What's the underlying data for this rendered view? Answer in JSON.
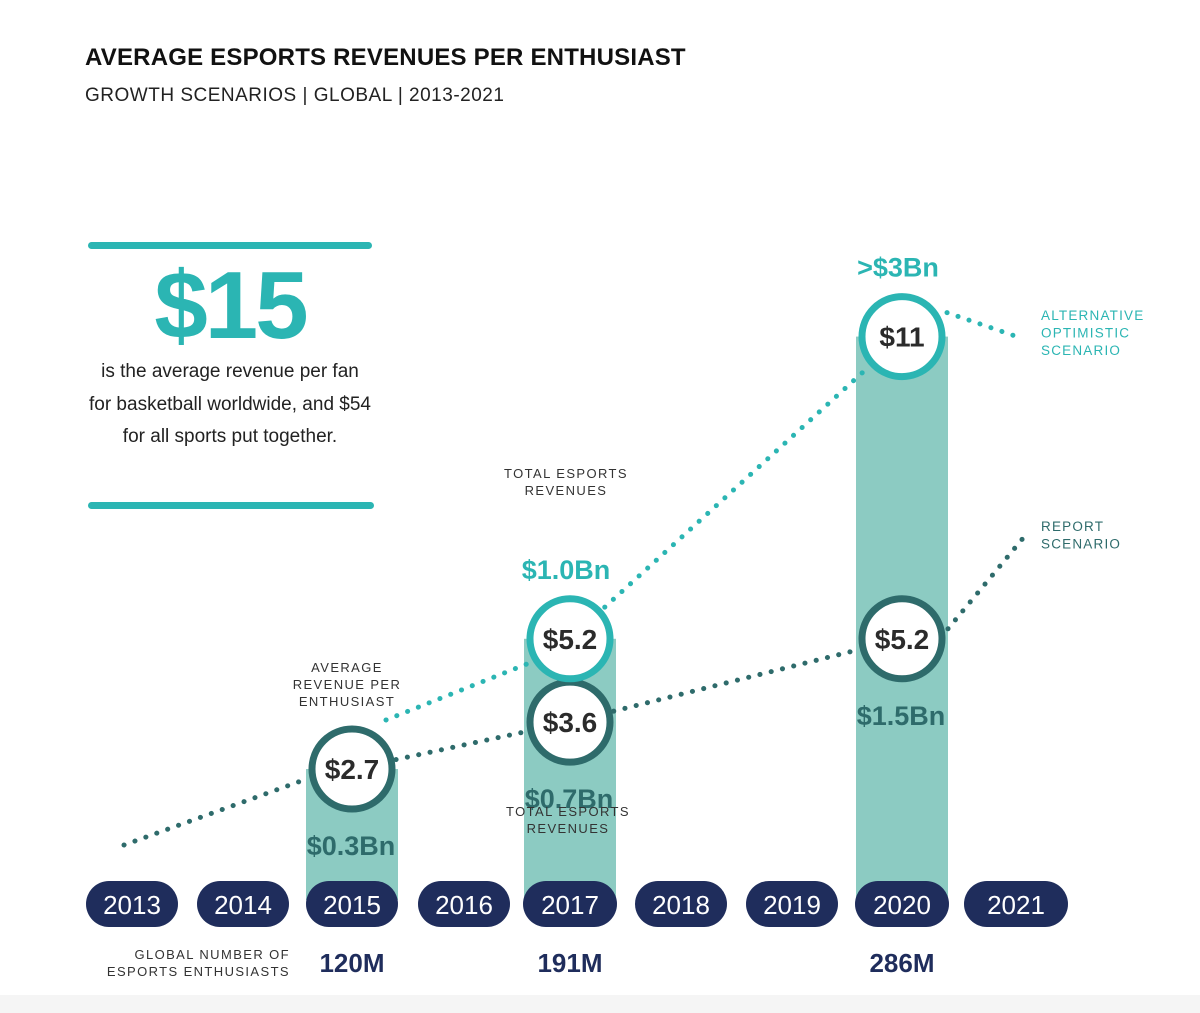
{
  "header": {
    "title": "AVERAGE ESPORTS REVENUES PER ENTHUSIAST",
    "subtitle": "GROWTH SCENARIOS | GLOBAL | 2013-2021"
  },
  "callout": {
    "value": "$15",
    "text": "is the average revenue per fan for basketball worldwide, and $54 for all sports put together."
  },
  "chart_data": {
    "type": "bar",
    "title": "AVERAGE ESPORTS REVENUES PER ENTHUSIAST",
    "subtitle": "GROWTH SCENARIOS | GLOBAL | 2013-2021",
    "categories": [
      "2013",
      "2014",
      "2015",
      "2016",
      "2017",
      "2018",
      "2019",
      "2020",
      "2021"
    ],
    "series": [
      {
        "name": "REPORT SCENARIO",
        "label": [
          "REPORT",
          "SCENARIO"
        ],
        "points": [
          {
            "year": "2015",
            "value": 2.7,
            "label": "$2.7",
            "revenue": "$0.3Bn"
          },
          {
            "year": "2017",
            "value": 3.6,
            "label": "$3.6",
            "revenue": "$0.7Bn"
          },
          {
            "year": "2020",
            "value": 5.2,
            "label": "$5.2",
            "revenue": "$1.5Bn"
          }
        ],
        "color": "#2e6b6b"
      },
      {
        "name": "ALTERNATIVE OPTIMISTIC SCENARIO",
        "label": [
          "ALTERNATIVE",
          "OPTIMISTIC",
          "SCENARIO"
        ],
        "points": [
          {
            "year": "2017",
            "value": 5.2,
            "label": "$5.2",
            "revenue": "$1.0Bn"
          },
          {
            "year": "2020",
            "value": 11,
            "label": "$11",
            "revenue": ">$3Bn"
          }
        ],
        "color": "#2bb5b3"
      }
    ],
    "enthusiasts": [
      {
        "year": "2015",
        "label": "120M"
      },
      {
        "year": "2017",
        "label": "191M"
      },
      {
        "year": "2020",
        "label": "286M"
      }
    ],
    "annotations": {
      "avg_revenue": [
        "AVERAGE",
        "REVENUE PER",
        "ENTHUSIAST"
      ],
      "total_top": [
        "TOTAL ESPORTS",
        "REVENUES"
      ],
      "total_bottom": [
        "TOTAL ESPORTS",
        "REVENUES"
      ],
      "enthusiasts": [
        "GLOBAL NUMBER OF",
        "ESPORTS ENTHUSIASTS"
      ]
    }
  },
  "colors": {
    "teal": "#2bb5b3",
    "dark_teal": "#2e6b6b",
    "bar": "#8ccbc2",
    "navy": "#1f2d5c"
  }
}
